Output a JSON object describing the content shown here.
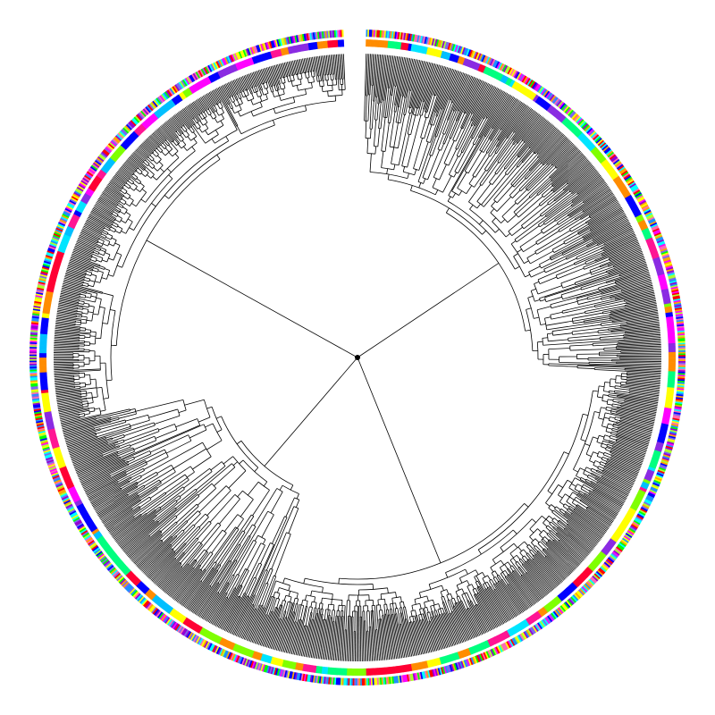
{
  "figure": {
    "type": "circular-phylogenetic-tree",
    "background": "#ffffff",
    "branch_color": "#000000",
    "root_marker_color": "#000000"
  },
  "rings": {
    "inner": {
      "palette": [
        "#0000ff",
        "#00bfff",
        "#00e5ff",
        "#7fff00",
        "#00ff7f",
        "#ffff00",
        "#ff8c00",
        "#ff0033",
        "#ff00ff",
        "#8a2be2",
        "#ff1493"
      ]
    },
    "outer": {
      "palette": [
        "#0000ff",
        "#1e90ff",
        "#00ffff",
        "#00ff00",
        "#adff2f",
        "#ffff00",
        "#ffa500",
        "#ff0000",
        "#ff00ff",
        "#9400d3",
        "#ff69b4",
        "#7b68ee"
      ]
    }
  }
}
